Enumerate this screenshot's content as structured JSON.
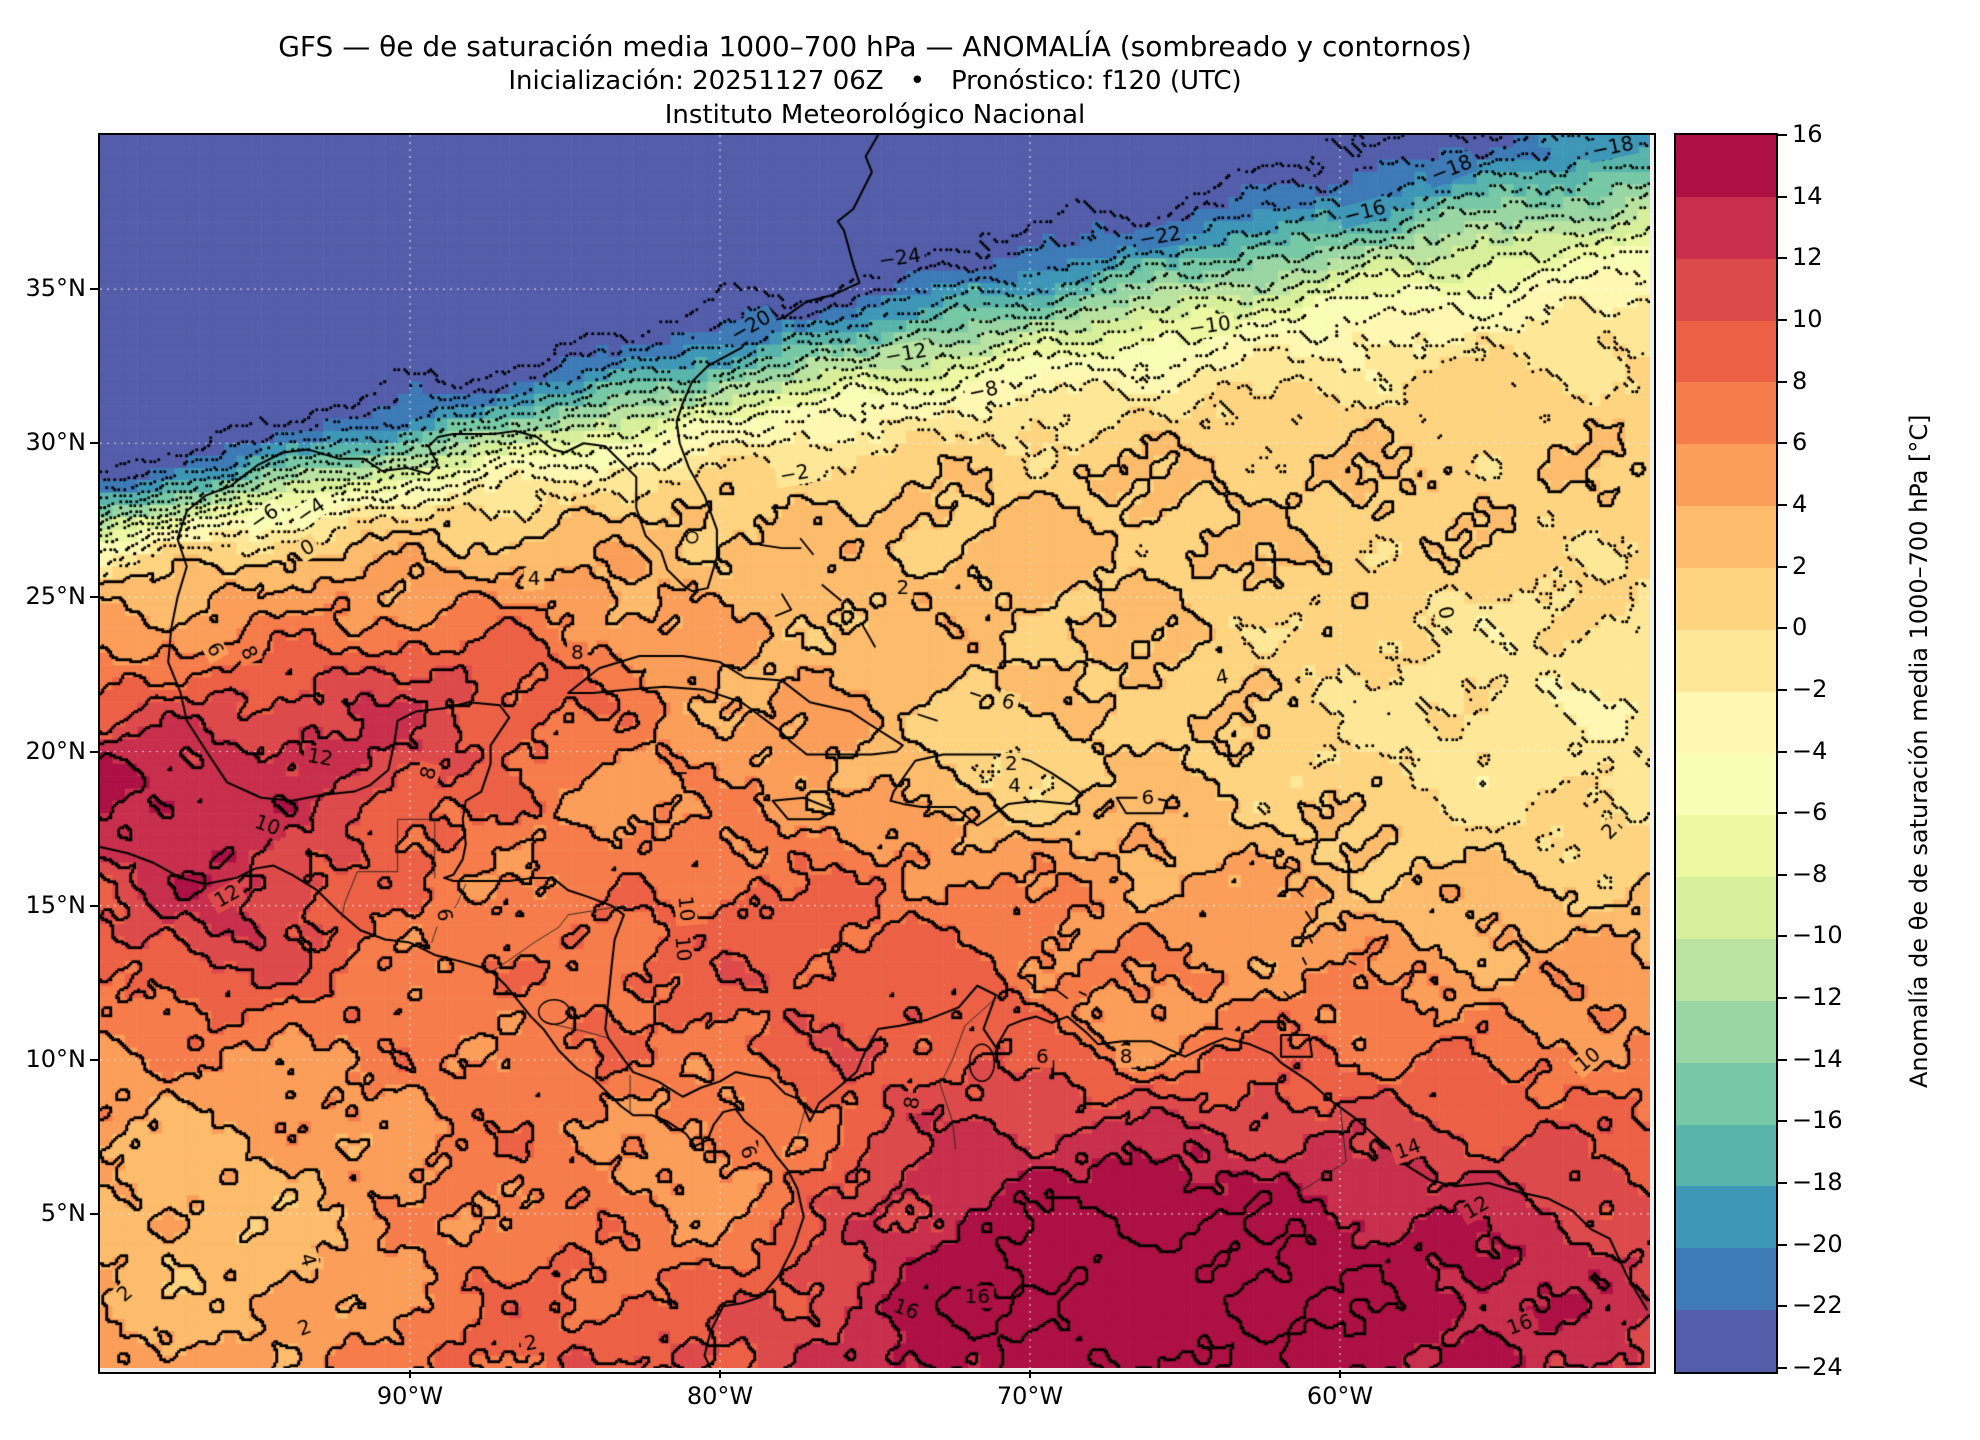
{
  "title": {
    "line1": "GFS — θe de saturación media 1000–700 hPa — ANOMALÍA (sombreado y contornos)",
    "line2": "Inicialización: 20251127 06Z • Pronóstico: f120 (UTC)",
    "line3": "Instituto Meteorológico Nacional"
  },
  "axes": {
    "lat_ticks": [
      {
        "label": "35°N",
        "value": 35
      },
      {
        "label": "30°N",
        "value": 30
      },
      {
        "label": "25°N",
        "value": 25
      },
      {
        "label": "20°N",
        "value": 20
      },
      {
        "label": "15°N",
        "value": 15
      },
      {
        "label": "10°N",
        "value": 10
      },
      {
        "label": "5°N",
        "value": 5
      }
    ],
    "lon_ticks": [
      {
        "label": "90°W",
        "value": -90
      },
      {
        "label": "80°W",
        "value": -80
      },
      {
        "label": "70°W",
        "value": -70
      },
      {
        "label": "60°W",
        "value": -60
      }
    ]
  },
  "colorbar": {
    "label": "Anomalía de θe de saturación media 1000–700 hPa [°C]",
    "min": -24,
    "max": 16,
    "step": 2,
    "tick_values": [
      16,
      14,
      12,
      10,
      8,
      6,
      4,
      2,
      0,
      -2,
      -4,
      -6,
      -8,
      -10,
      -12,
      -14,
      -16,
      -18,
      -20,
      -22,
      -24
    ],
    "tick_labels": [
      "16",
      "14",
      "12",
      "10",
      "8",
      "6",
      "4",
      "2",
      "0",
      "−2",
      "−4",
      "−6",
      "−8",
      "−10",
      "−12",
      "−14",
      "−16",
      "−18",
      "−20",
      "−22",
      "−24"
    ],
    "colormap_anchors": [
      "#5e4fa2",
      "#3288bd",
      "#66c2a5",
      "#abdda4",
      "#e6f598",
      "#ffffbf",
      "#fee08b",
      "#fdae61",
      "#f46d43",
      "#d53e4f",
      "#9e0142"
    ]
  },
  "chart_data": {
    "type": "heatmap",
    "model": "GFS",
    "field": "Anomalía de θe de saturación media 1000–700 hPa",
    "units": "°C",
    "init": "20251127 06Z",
    "forecast": "f120 (UTC)",
    "institution": "Instituto Meteorológico Nacional",
    "extent": {
      "lon_min": -100,
      "lon_max": -50,
      "lat_min": 0,
      "lat_max": 40
    },
    "contour_interval": 2,
    "contour_min": -24,
    "contour_max": 16,
    "contour_style": {
      "negative": "dotted",
      "zero": "dotted",
      "positive": "solid"
    },
    "grid_lon": [
      -100,
      -95,
      -90,
      -85,
      -80,
      -75,
      -70,
      -65,
      -60,
      -55,
      -50
    ],
    "grid_lat": [
      40,
      35,
      30,
      25,
      20,
      15,
      10,
      5,
      0
    ],
    "values": [
      [
        -26,
        -26,
        -26,
        -26,
        -25,
        -24,
        -23,
        -22,
        -20,
        -19,
        -18
      ],
      [
        -26,
        -25,
        -24,
        -23,
        -21,
        -19,
        -17,
        -15,
        -13,
        -12,
        -11
      ],
      [
        -20,
        -10,
        -4,
        -2,
        -1,
        -1,
        -1,
        -1,
        -1,
        -2,
        -2
      ],
      [
        4,
        5,
        5,
        6,
        4,
        3,
        3,
        3,
        2,
        1,
        0
      ],
      [
        9,
        8,
        12,
        9,
        6,
        5,
        3,
        4,
        3,
        2,
        2
      ],
      [
        6,
        10,
        8,
        7,
        9,
        9,
        8,
        7,
        6,
        4,
        3
      ],
      [
        4,
        6,
        7,
        8,
        9,
        8,
        7,
        8,
        8,
        8,
        10
      ],
      [
        2,
        3,
        4,
        6,
        8,
        12,
        15,
        14,
        12,
        12,
        12
      ],
      [
        2,
        2,
        3,
        5,
        9,
        15,
        16,
        16,
        14,
        15,
        16
      ]
    ],
    "contour_labels": [
      {
        "text": "−18",
        "lon": -51.2,
        "lat": 39.6,
        "rot": -12
      },
      {
        "text": "−18",
        "lon": -56.4,
        "lat": 38.9,
        "rot": -22
      },
      {
        "text": "−16",
        "lon": -59.2,
        "lat": 37.5,
        "rot": -15
      },
      {
        "text": "−22",
        "lon": -65.8,
        "lat": 36.7,
        "rot": -10
      },
      {
        "text": "−24",
        "lon": -74.2,
        "lat": 36.0,
        "rot": -8
      },
      {
        "text": "−20",
        "lon": -79.0,
        "lat": 33.8,
        "rot": -30
      },
      {
        "text": "−10",
        "lon": -64.2,
        "lat": 33.8,
        "rot": -8
      },
      {
        "text": "−12",
        "lon": -74.0,
        "lat": 32.9,
        "rot": -10
      },
      {
        "text": "−8",
        "lon": -71.5,
        "lat": 31.7,
        "rot": -12
      },
      {
        "text": "−6",
        "lon": -94.7,
        "lat": 27.6,
        "rot": -35
      },
      {
        "text": "−4",
        "lon": -93.2,
        "lat": 27.8,
        "rot": -35
      },
      {
        "text": "−2",
        "lon": -77.6,
        "lat": 29.0,
        "rot": -10
      },
      {
        "text": "0",
        "lon": -93.3,
        "lat": 26.6,
        "rot": -30
      },
      {
        "text": "0",
        "lon": -56.6,
        "lat": 24.5,
        "rot": 80
      },
      {
        "text": "2",
        "lon": -74.1,
        "lat": 25.3,
        "rot": 0
      },
      {
        "text": "2",
        "lon": -51.3,
        "lat": 17.4,
        "rot": -45
      },
      {
        "text": "4",
        "lon": -63.8,
        "lat": 22.4,
        "rot": -10
      },
      {
        "text": "4",
        "lon": -86.0,
        "lat": 25.6,
        "rot": 0
      },
      {
        "text": "6",
        "lon": -96.3,
        "lat": 23.3,
        "rot": 60
      },
      {
        "text": "8",
        "lon": -95.2,
        "lat": 23.2,
        "rot": 65
      },
      {
        "text": "8",
        "lon": -84.6,
        "lat": 23.2,
        "rot": 0
      },
      {
        "text": "6",
        "lon": -70.7,
        "lat": 21.6,
        "rot": 15
      },
      {
        "text": "2",
        "lon": -70.6,
        "lat": 19.6,
        "rot": 0
      },
      {
        "text": "4",
        "lon": -70.5,
        "lat": 18.9,
        "rot": 0
      },
      {
        "text": "6",
        "lon": -66.2,
        "lat": 18.5,
        "rot": 0
      },
      {
        "text": "12",
        "lon": -92.9,
        "lat": 19.8,
        "rot": 10
      },
      {
        "text": "8",
        "lon": -89.4,
        "lat": 19.3,
        "rot": -75
      },
      {
        "text": "10",
        "lon": -94.6,
        "lat": 17.6,
        "rot": 20
      },
      {
        "text": "12",
        "lon": -95.9,
        "lat": 15.3,
        "rot": -30
      },
      {
        "text": "6",
        "lon": -88.9,
        "lat": 14.7,
        "rot": 80
      },
      {
        "text": "10",
        "lon": -81.1,
        "lat": 14.9,
        "rot": 85
      },
      {
        "text": "10",
        "lon": -81.2,
        "lat": 13.6,
        "rot": 85
      },
      {
        "text": "6",
        "lon": -69.6,
        "lat": 10.1,
        "rot": 0
      },
      {
        "text": "8",
        "lon": -66.9,
        "lat": 10.1,
        "rot": 0
      },
      {
        "text": "8",
        "lon": -73.8,
        "lat": 8.6,
        "rot": -80
      },
      {
        "text": "6",
        "lon": -79.1,
        "lat": 7.0,
        "rot": 70
      },
      {
        "text": "16",
        "lon": -74.0,
        "lat": 1.9,
        "rot": 20
      },
      {
        "text": "16",
        "lon": -71.7,
        "lat": 2.3,
        "rot": 0
      },
      {
        "text": "14",
        "lon": -57.8,
        "lat": 7.1,
        "rot": -20
      },
      {
        "text": "12",
        "lon": -55.6,
        "lat": 5.2,
        "rot": -30
      },
      {
        "text": "10",
        "lon": -52.0,
        "lat": 10.0,
        "rot": -40
      },
      {
        "text": "4",
        "lon": -93.3,
        "lat": 3.5,
        "rot": 75
      },
      {
        "text": "2",
        "lon": -99.2,
        "lat": 2.4,
        "rot": -40
      },
      {
        "text": "2",
        "lon": -93.4,
        "lat": 1.3,
        "rot": -20
      },
      {
        "text": "2",
        "lon": -86.1,
        "lat": 0.8,
        "rot": -10
      },
      {
        "text": "16",
        "lon": -54.2,
        "lat": 1.4,
        "rot": -20
      }
    ]
  }
}
